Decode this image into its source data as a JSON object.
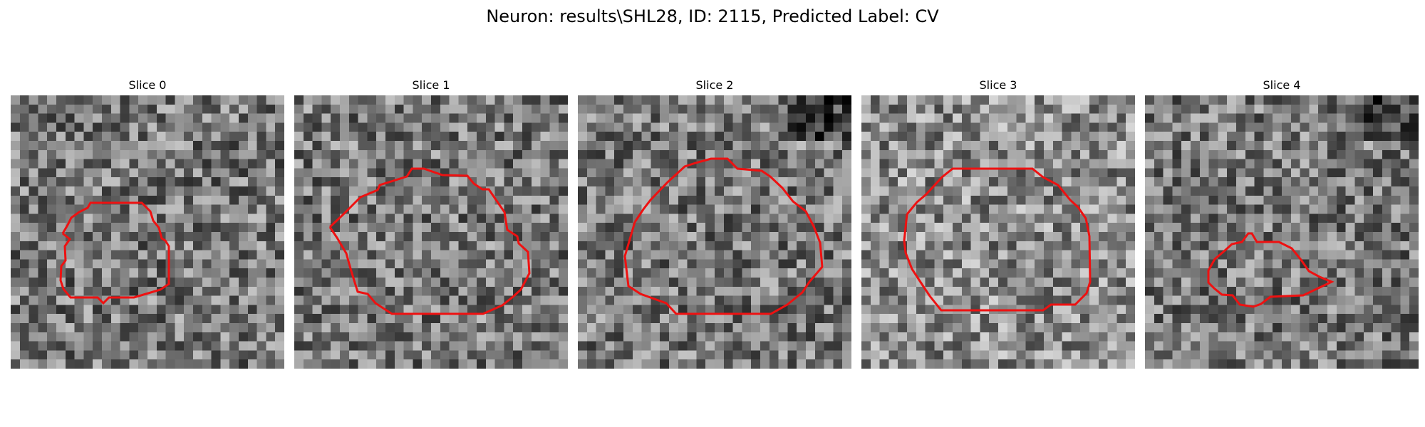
{
  "title": "Neuron: results\\SHL28, ID: 2115, Predicted Label: CV",
  "colors": {
    "contour": "#ee1111",
    "background": "#ffffff"
  },
  "panels": [
    {
      "title": "Slice 0",
      "image_description_colormap": "gray",
      "contour_color": "red"
    },
    {
      "title": "Slice 1",
      "image_description_colormap": "gray",
      "contour_color": "red"
    },
    {
      "title": "Slice 2",
      "image_description_colormap": "gray",
      "contour_color": "red"
    },
    {
      "title": "Slice 3",
      "image_description_colormap": "gray",
      "contour_color": "red"
    },
    {
      "title": "Slice 4",
      "image_description_colormap": "gray",
      "contour_color": "red"
    }
  ]
}
